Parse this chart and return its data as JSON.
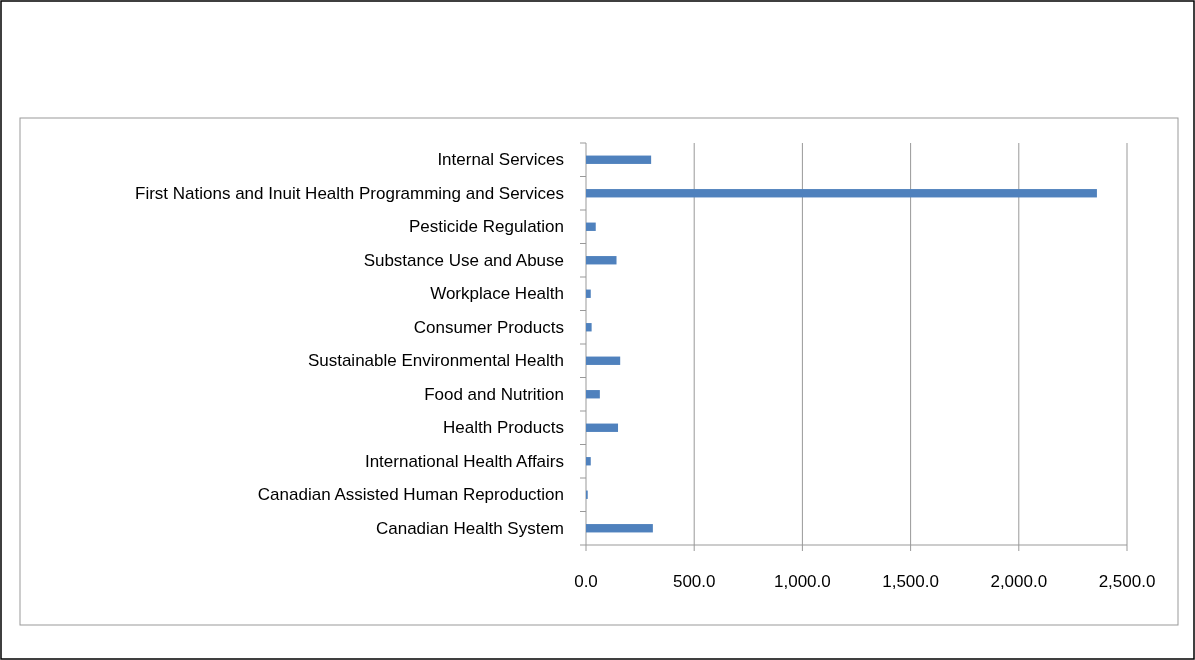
{
  "chart_data": {
    "type": "bar",
    "orientation": "horizontal",
    "categories": [
      "Internal Services",
      "First Nations and Inuit Health Programming and Services",
      "Pesticide Regulation",
      "Substance Use and Abuse",
      "Workplace Health",
      "Consumer Products",
      "Sustainable Environmental Health",
      "Food and Nutrition",
      "Health Products",
      "International Health Affairs",
      "Canadian Assisted Human Reproduction",
      "Canadian Health System"
    ],
    "values": [
      301,
      2361,
      45,
      141,
      22,
      26,
      158,
      64,
      148,
      22,
      8,
      309
    ],
    "color": "#4f81bd",
    "xlim": [
      0,
      2500
    ],
    "xticks": [
      {
        "value": 0,
        "label": "0.0"
      },
      {
        "value": 500,
        "label": "500.0"
      },
      {
        "value": 1000,
        "label": "1,000.0"
      },
      {
        "value": 1500,
        "label": "1,500.0"
      },
      {
        "value": 2000,
        "label": "2,000.0"
      },
      {
        "value": 2500,
        "label": "2,500.0"
      }
    ],
    "grid": "x"
  }
}
